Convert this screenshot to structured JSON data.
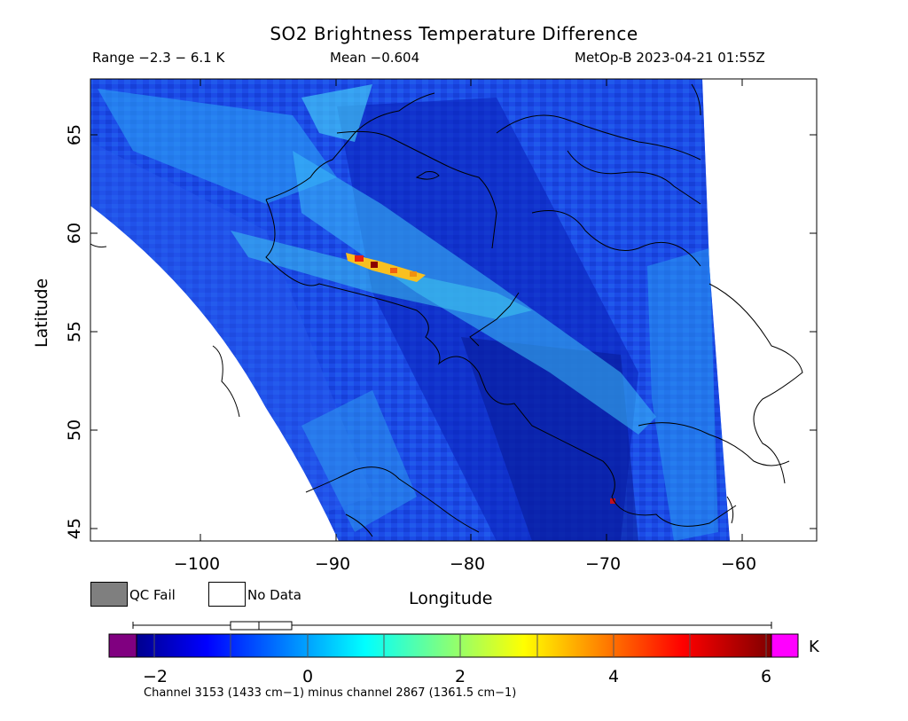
{
  "title": "SO2 Brightness Temperature Difference",
  "header": {
    "range": "Range −2.3 − 6.1 K",
    "mean": "Mean −0.604",
    "satellite_time": "MetOp-B 2023-04-21 01:55Z"
  },
  "axes": {
    "xlabel": "Longitude",
    "ylabel": "Latitude",
    "x_ticks": [
      "−100",
      "−90",
      "−80",
      "−70",
      "−60"
    ],
    "y_ticks": [
      "65",
      "60",
      "55",
      "50",
      "45"
    ],
    "x_range": [
      -108,
      -55
    ],
    "y_range": [
      44,
      68
    ]
  },
  "legend": {
    "qc_fail": "QC Fail",
    "no_data": "No Data",
    "qc_fail_color": "#7f7f7f",
    "no_data_color": "#ffffff"
  },
  "colorbar": {
    "unit": "K",
    "ticks": [
      "−2",
      "0",
      "2",
      "4",
      "6"
    ],
    "tick_values": [
      -2,
      0,
      2,
      4,
      6
    ],
    "range": [
      -2.3,
      6.1
    ],
    "colormap": "jet",
    "under_color": "#800080",
    "over_color": "#ff00ff",
    "boxplot": {
      "min": -2.3,
      "q1": -1.0,
      "median": -0.6,
      "q3": -0.2,
      "max": 6.1
    }
  },
  "footnote": "Channel 3153 (1433 cm−1) minus channel 2867 (1361.5 cm−1)",
  "features": {
    "plume_max_value": 6.1,
    "plume_hotspot": "≈ 58.5°N, 87°W"
  }
}
